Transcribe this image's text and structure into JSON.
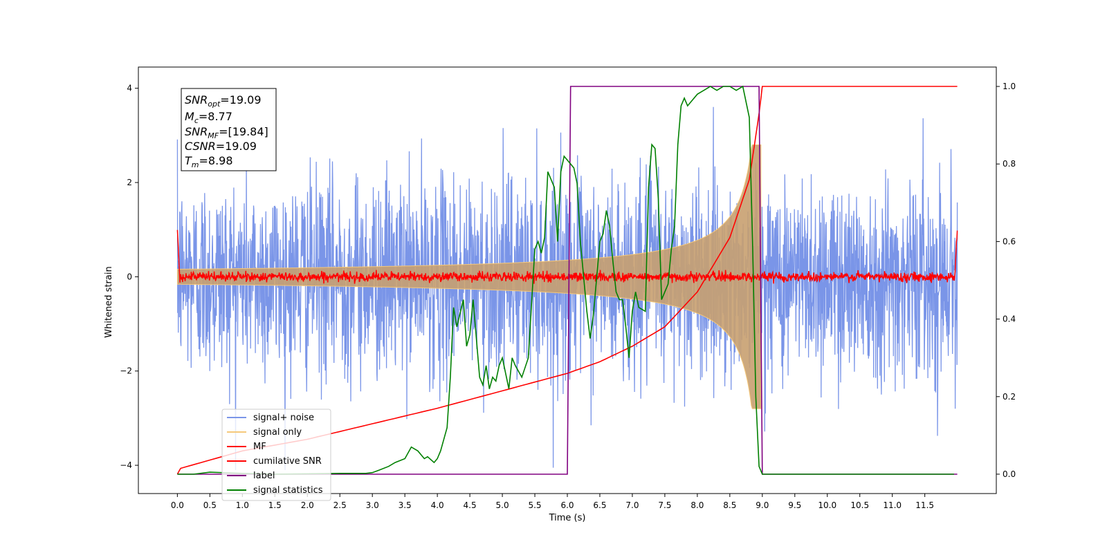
{
  "chart_data": {
    "type": "line",
    "xlabel": "Time (s)",
    "ylabel": "Whitened strain",
    "xlim": [
      -0.6,
      12.6
    ],
    "ylim_left": [
      -4.6,
      4.45
    ],
    "ylim_right": [
      -0.05,
      1.05
    ],
    "x_ticks": [
      "0.0",
      "0.5",
      "1.0",
      "1.5",
      "2.0",
      "2.5",
      "3.0",
      "3.5",
      "4.0",
      "4.5",
      "5.0",
      "5.5",
      "6.0",
      "6.5",
      "7.0",
      "7.5",
      "8.0",
      "8.5",
      "9.0",
      "9.5",
      "10.0",
      "10.5",
      "11.0",
      "11.5"
    ],
    "y_left_ticks": [
      "−4",
      "−2",
      "0",
      "2",
      "4"
    ],
    "y_right_ticks": [
      "0.0",
      "0.2",
      "0.4",
      "0.6",
      "0.8",
      "1.0"
    ],
    "grid": false,
    "legend_position": "lower-left",
    "annotation": {
      "snr_opt": {
        "base": "SNR",
        "sub": "opt",
        "value": "=19.09"
      },
      "mc": {
        "base": "M",
        "sub": "c",
        "value": "=8.77"
      },
      "snr_mf": {
        "base": "SNR",
        "sub": "MF",
        "value": "=[19.84]"
      },
      "csnr": {
        "base": "CSNR",
        "sub": "",
        "value": "=19.09"
      },
      "tm": {
        "base": "T",
        "sub": "m",
        "value": "=8.98"
      }
    },
    "series": [
      {
        "name": "signal+ noise",
        "color": "#7a95e8",
        "axis": "left",
        "kind": "noise",
        "amplitude_sd": 1.0,
        "t_start": 0.0,
        "t_end": 12.0
      },
      {
        "name": "signal only",
        "color": "#f5c87a",
        "axis": "left",
        "kind": "chirp_envelope",
        "t_start": 0.0,
        "t_merger": 8.98,
        "peak_amplitude": 2.8
      },
      {
        "name": "MF",
        "color": "#ff0000",
        "axis": "left",
        "kind": "mf_output",
        "baseline_noise": 0.05,
        "edge_value": 1.0
      },
      {
        "name": "cumilative SNR",
        "color": "#ff0000",
        "axis": "right",
        "x": [
          0.0,
          0.05,
          1.0,
          2.0,
          3.0,
          4.0,
          5.0,
          6.0,
          6.5,
          7.0,
          7.5,
          8.0,
          8.5,
          8.8,
          8.95,
          9.0,
          12.0
        ],
        "y": [
          0.0,
          0.015,
          0.06,
          0.09,
          0.13,
          0.17,
          0.215,
          0.26,
          0.29,
          0.33,
          0.38,
          0.47,
          0.61,
          0.76,
          0.93,
          1.0,
          1.0
        ]
      },
      {
        "name": "label",
        "color": "#800080",
        "axis": "right",
        "x": [
          0.0,
          6.0,
          6.05,
          8.95,
          9.0,
          12.0
        ],
        "y": [
          0.0,
          0.0,
          1.0,
          1.0,
          0.0,
          0.0
        ]
      },
      {
        "name": "signal statistics",
        "color": "#008000",
        "axis": "right",
        "x": [
          0.0,
          0.25,
          0.5,
          1.0,
          1.5,
          2.0,
          2.5,
          2.9,
          3.0,
          3.1,
          3.25,
          3.35,
          3.5,
          3.6,
          3.7,
          3.8,
          3.85,
          3.95,
          4.0,
          4.05,
          4.15,
          4.2,
          4.25,
          4.3,
          4.4,
          4.45,
          4.5,
          4.55,
          4.6,
          4.65,
          4.7,
          4.75,
          4.8,
          4.85,
          4.9,
          4.95,
          5.0,
          5.1,
          5.15,
          5.2,
          5.3,
          5.4,
          5.5,
          5.55,
          5.6,
          5.65,
          5.7,
          5.75,
          5.8,
          5.85,
          5.9,
          5.95,
          6.05,
          6.1,
          6.15,
          6.2,
          6.3,
          6.35,
          6.4,
          6.5,
          6.55,
          6.6,
          6.65,
          6.7,
          6.75,
          6.8,
          6.85,
          6.9,
          6.95,
          7.0,
          7.05,
          7.1,
          7.2,
          7.25,
          7.3,
          7.35,
          7.4,
          7.45,
          7.5,
          7.55,
          7.6,
          7.65,
          7.7,
          7.75,
          7.8,
          7.85,
          7.9,
          8.0,
          8.1,
          8.2,
          8.3,
          8.4,
          8.5,
          8.6,
          8.7,
          8.8,
          8.85,
          8.9,
          8.95,
          9.0,
          9.5,
          10.0,
          11.0,
          11.95
        ],
        "y": [
          0.0,
          0.0,
          0.005,
          0.002,
          0.0,
          0.001,
          0.002,
          0.002,
          0.004,
          0.01,
          0.02,
          0.03,
          0.04,
          0.07,
          0.06,
          0.04,
          0.045,
          0.03,
          0.04,
          0.06,
          0.12,
          0.25,
          0.43,
          0.38,
          0.45,
          0.33,
          0.36,
          0.45,
          0.35,
          0.25,
          0.23,
          0.28,
          0.22,
          0.25,
          0.24,
          0.28,
          0.3,
          0.22,
          0.3,
          0.28,
          0.25,
          0.3,
          0.58,
          0.6,
          0.57,
          0.61,
          0.78,
          0.76,
          0.74,
          0.6,
          0.78,
          0.82,
          0.8,
          0.79,
          0.75,
          0.6,
          0.42,
          0.35,
          0.41,
          0.6,
          0.62,
          0.68,
          0.64,
          0.55,
          0.47,
          0.45,
          0.45,
          0.38,
          0.3,
          0.42,
          0.47,
          0.43,
          0.42,
          0.74,
          0.85,
          0.84,
          0.71,
          0.45,
          0.47,
          0.49,
          0.58,
          0.64,
          0.85,
          0.95,
          0.97,
          0.95,
          0.96,
          0.98,
          0.99,
          1.0,
          0.99,
          1.0,
          1.0,
          0.99,
          1.0,
          0.92,
          0.6,
          0.2,
          0.02,
          0.0,
          0.0,
          0.0,
          0.0,
          0.0
        ]
      }
    ]
  }
}
